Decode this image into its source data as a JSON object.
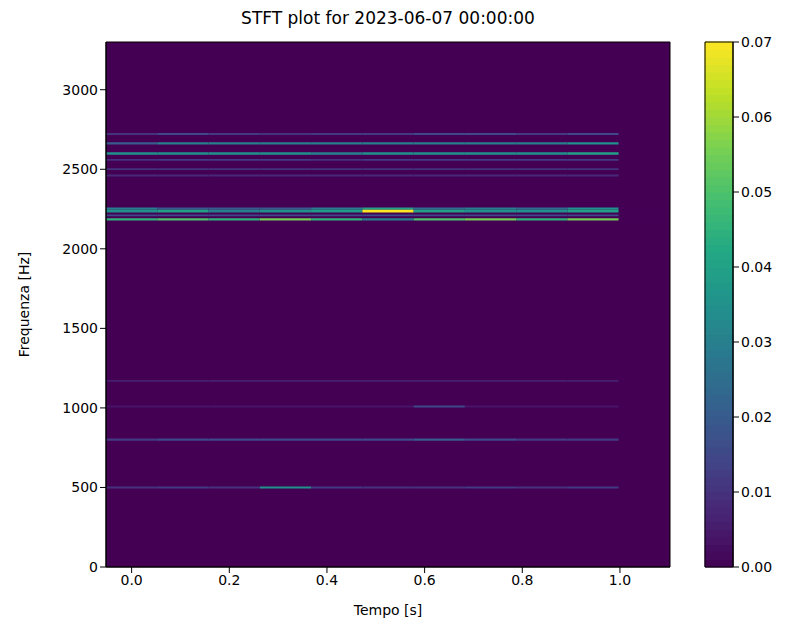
{
  "chart_data": {
    "type": "heatmap",
    "title": "STFT plot for 2023-06-07 00:00:00",
    "xlabel": "Tempo [s]",
    "ylabel": "Frequenza [Hz]",
    "xlim": [
      -0.0525,
      1.1025
    ],
    "ylim": [
      0,
      3300
    ],
    "xticks": [
      {
        "value": 0,
        "label": "0.0"
      },
      {
        "value": 0.2,
        "label": "0.2"
      },
      {
        "value": 0.4,
        "label": "0.4"
      },
      {
        "value": 0.6,
        "label": "0.6"
      },
      {
        "value": 0.8,
        "label": "0.8"
      },
      {
        "value": 1,
        "label": "1.0"
      }
    ],
    "yticks": [
      0,
      500,
      1000,
      1500,
      2000,
      2500,
      3000
    ],
    "x_bins": [
      -0.0525,
      0.0525,
      0.1575,
      0.2625,
      0.3675,
      0.4725,
      0.5775,
      0.6825,
      0.7875,
      0.8925,
      0.9975,
      1.1025
    ],
    "rows": [
      {
        "y_bin": [
          2715,
          2728
        ],
        "values": [
          0.01,
          0.015,
          0.012,
          0.01,
          0.012,
          0.012,
          0.015,
          0.015,
          0.012,
          0.015,
          0
        ]
      },
      {
        "y_bin": [
          2655,
          2670
        ],
        "values": [
          0.02,
          0.03,
          0.03,
          0.03,
          0.03,
          0.03,
          0.03,
          0.03,
          0.03,
          0.035,
          0
        ]
      },
      {
        "y_bin": [
          2592,
          2607
        ],
        "values": [
          0.035,
          0.035,
          0.035,
          0.035,
          0.03,
          0.035,
          0.035,
          0.035,
          0.035,
          0.04,
          0
        ]
      },
      {
        "y_bin": [
          2553,
          2565
        ],
        "values": [
          0.01,
          0.012,
          0.012,
          0.012,
          0.01,
          0.012,
          0.012,
          0.012,
          0.012,
          0.012,
          0
        ]
      },
      {
        "y_bin": [
          2495,
          2507
        ],
        "values": [
          0.01,
          0.01,
          0.01,
          0.01,
          0.01,
          0.01,
          0.01,
          0.01,
          0.01,
          0.01,
          0
        ]
      },
      {
        "y_bin": [
          2455,
          2467
        ],
        "values": [
          0.008,
          0.008,
          0.008,
          0.008,
          0.008,
          0.008,
          0.008,
          0.008,
          0.008,
          0.008,
          0
        ]
      },
      {
        "y_bin": [
          2246,
          2260
        ],
        "values": [
          0.03,
          0.02,
          0.02,
          0.02,
          0.03,
          0.04,
          0.025,
          0.03,
          0.025,
          0.035,
          0
        ]
      },
      {
        "y_bin": [
          2228,
          2246
        ],
        "values": [
          0.035,
          0.04,
          0.03,
          0.035,
          0.038,
          0.07,
          0.04,
          0.035,
          0.035,
          0.04,
          0
        ]
      },
      {
        "y_bin": [
          2204,
          2216
        ],
        "values": [
          0.015,
          0.015,
          0.015,
          0.015,
          0.015,
          0.015,
          0.015,
          0.015,
          0.015,
          0.015,
          0
        ]
      },
      {
        "y_bin": [
          2178,
          2192
        ],
        "values": [
          0.045,
          0.05,
          0.045,
          0.055,
          0.045,
          0.03,
          0.05,
          0.055,
          0.045,
          0.055,
          0
        ]
      },
      {
        "y_bin": [
          1165,
          1175
        ],
        "values": [
          0.006,
          0.006,
          0.006,
          0.006,
          0.006,
          0.006,
          0.006,
          0.006,
          0.006,
          0.006,
          0
        ]
      },
      {
        "y_bin": [
          1003,
          1015
        ],
        "values": [
          0.004,
          0.004,
          0.004,
          0.004,
          0.004,
          0.004,
          0.015,
          0.004,
          0.004,
          0.004,
          0
        ]
      },
      {
        "y_bin": [
          793,
          808
        ],
        "values": [
          0.012,
          0.015,
          0.015,
          0.015,
          0.015,
          0.015,
          0.02,
          0.015,
          0.012,
          0.012,
          0
        ]
      },
      {
        "y_bin": [
          494,
          506
        ],
        "values": [
          0.01,
          0.012,
          0.01,
          0.035,
          0.012,
          0.01,
          0.01,
          0.012,
          0.01,
          0.012,
          0
        ]
      }
    ],
    "colorbar": {
      "range": [
        0,
        0.07
      ],
      "ticks": [
        {
          "value": 0,
          "label": "0.00"
        },
        {
          "value": 0.01,
          "label": "0.01"
        },
        {
          "value": 0.02,
          "label": "0.02"
        },
        {
          "value": 0.03,
          "label": "0.03"
        },
        {
          "value": 0.04,
          "label": "0.04"
        },
        {
          "value": 0.05,
          "label": "0.05"
        },
        {
          "value": 0.06,
          "label": "0.06"
        },
        {
          "value": 0.07,
          "label": "0.07"
        }
      ]
    }
  }
}
